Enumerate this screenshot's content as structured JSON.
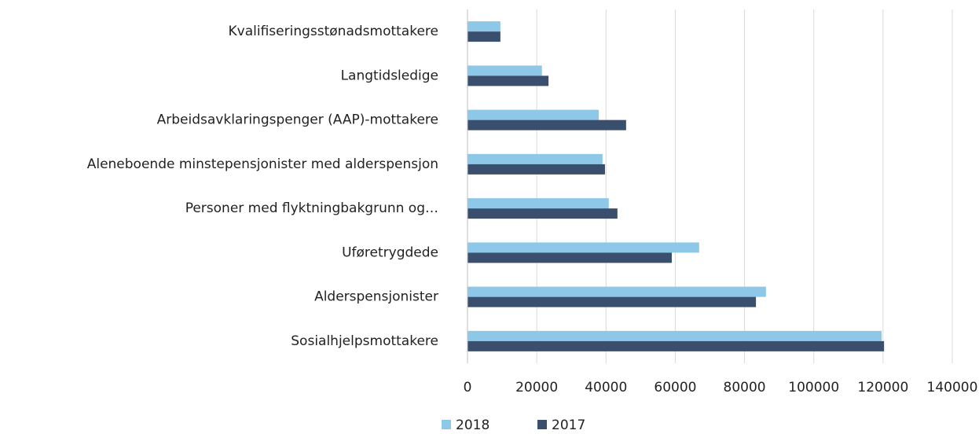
{
  "chart_data": {
    "type": "barh",
    "categories": [
      "Kvalifiseringsstønadsmottakere",
      "Langtidsledige",
      "Arbeidsavklaringspenger (AAP)-mottakere",
      "Aleneboende minstepensjonister med alderspensjon",
      "Personer med flyktningbakgrunn og…",
      "Uføretrygdede",
      "Alderspensjonister",
      "Sosialhjelpsmottakere"
    ],
    "series": [
      {
        "name": "2018",
        "color": "#8ec8e8",
        "values": [
          9500,
          21500,
          37900,
          39000,
          40800,
          66900,
          86200,
          119600
        ]
      },
      {
        "name": "2017",
        "color": "#3a4e6e",
        "values": [
          9500,
          23400,
          45800,
          39700,
          43300,
          59000,
          83300,
          120300
        ]
      }
    ],
    "xlim": [
      0,
      140000
    ],
    "xticks": [
      0,
      20000,
      40000,
      60000,
      80000,
      100000,
      120000,
      140000
    ],
    "grid": true,
    "legend": "bottom"
  }
}
